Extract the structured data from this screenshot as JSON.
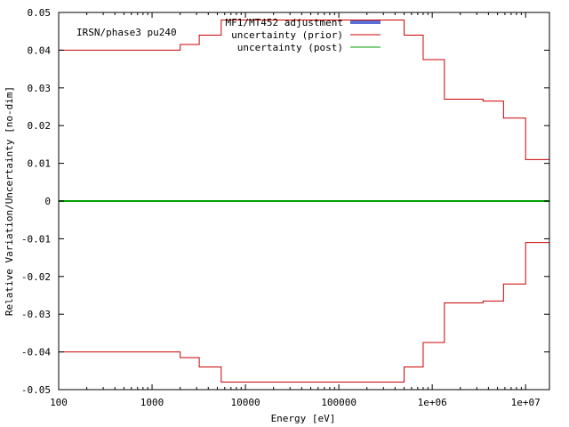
{
  "chart_data": {
    "type": "line",
    "annotation": "IRSN/phase3 pu240",
    "xlabel": "Energy [eV]",
    "ylabel": "Relative Variation/Uncertainty [no-dim]",
    "x_scale": "log",
    "xlim": [
      100,
      18000000
    ],
    "ylim": [
      -0.05,
      0.05
    ],
    "x_ticks": [
      {
        "value": 100,
        "label": "100"
      },
      {
        "value": 1000,
        "label": "1000"
      },
      {
        "value": 10000,
        "label": "10000"
      },
      {
        "value": 100000,
        "label": "100000"
      },
      {
        "value": 1000000,
        "label": "1e+06"
      },
      {
        "value": 10000000,
        "label": "1e+07"
      }
    ],
    "y_ticks": [
      {
        "value": 0.05,
        "label": "0.05"
      },
      {
        "value": 0.04,
        "label": "0.04"
      },
      {
        "value": 0.03,
        "label": "0.03"
      },
      {
        "value": 0.02,
        "label": "0.02"
      },
      {
        "value": 0.01,
        "label": "0.01"
      },
      {
        "value": 0,
        "label": "0"
      },
      {
        "value": -0.01,
        "label": "-0.01"
      },
      {
        "value": -0.02,
        "label": "-0.02"
      },
      {
        "value": -0.03,
        "label": "-0.03"
      },
      {
        "value": -0.04,
        "label": "-0.04"
      },
      {
        "value": -0.05,
        "label": "-0.05"
      }
    ],
    "legend_position": "top-center",
    "series": [
      {
        "name": "MF1/MT452 adjustment",
        "color": "#5b6fd6",
        "style": "bar-fill",
        "edges": [
          100,
          18000000
        ],
        "values": [
          0
        ]
      },
      {
        "name": "uncertainty (prior)",
        "color": "#cc0000",
        "style": "step-symmetric",
        "edges": [
          100,
          2000,
          3200,
          5500,
          500000,
          800000,
          1350000,
          3500000,
          5800000,
          10000000,
          18000000
        ],
        "values": [
          0.04,
          0.0415,
          0.044,
          0.048,
          0.044,
          0.0375,
          0.027,
          0.0265,
          0.022,
          0.011
        ]
      },
      {
        "name": "uncertainty (post)",
        "color": "#00a000",
        "style": "step-symmetric",
        "edges": [
          100,
          18000000
        ],
        "values": [
          0
        ]
      }
    ]
  }
}
